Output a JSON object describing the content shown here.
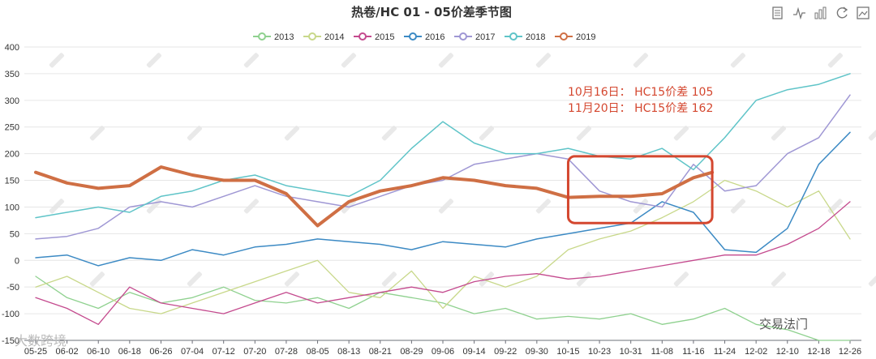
{
  "chart_data": {
    "type": "line",
    "title": "热卷/HC 01 - 05价差季节图",
    "xlabel": "",
    "ylabel": "",
    "ylim": [
      -150,
      400
    ],
    "yticks": [
      -150,
      -100,
      -50,
      0,
      50,
      100,
      150,
      200,
      250,
      300,
      350,
      400
    ],
    "x_tick_labels": [
      "05-25",
      "06-02",
      "06-10",
      "06-18",
      "06-26",
      "07-04",
      "07-12",
      "07-20",
      "07-28",
      "08-05",
      "08-13",
      "08-21",
      "08-29",
      "09-06",
      "09-14",
      "09-22",
      "09-30",
      "10-15",
      "10-23",
      "10-31",
      "11-08",
      "11-16",
      "11-24",
      "12-02",
      "12-10",
      "12-18",
      "12-26"
    ],
    "series": [
      {
        "name": "2013",
        "color": "#8fd18f",
        "width": 1.3,
        "values": [
          [
            0,
            -30
          ],
          [
            1,
            -70
          ],
          [
            2,
            -90
          ],
          [
            3,
            -60
          ],
          [
            4,
            -80
          ],
          [
            5,
            -70
          ],
          [
            6,
            -50
          ],
          [
            7,
            -75
          ],
          [
            8,
            -80
          ],
          [
            9,
            -70
          ],
          [
            10,
            -90
          ],
          [
            11,
            -60
          ],
          [
            12,
            -70
          ],
          [
            13,
            -80
          ],
          [
            14,
            -100
          ],
          [
            15,
            -90
          ],
          [
            16,
            -110
          ],
          [
            17,
            -105
          ],
          [
            18,
            -110
          ],
          [
            19,
            -100
          ],
          [
            20,
            -120
          ],
          [
            21,
            -110
          ],
          [
            22,
            -90
          ],
          [
            23,
            -120
          ],
          [
            24,
            -130
          ],
          [
            25,
            -150
          ],
          [
            26,
            -150
          ]
        ]
      },
      {
        "name": "2014",
        "color": "#c8d88a",
        "width": 1.3,
        "values": [
          [
            0,
            -50
          ],
          [
            1,
            -30
          ],
          [
            2,
            -60
          ],
          [
            3,
            -90
          ],
          [
            4,
            -100
          ],
          [
            5,
            -80
          ],
          [
            6,
            -60
          ],
          [
            7,
            -40
          ],
          [
            8,
            -20
          ],
          [
            9,
            0
          ],
          [
            10,
            -60
          ],
          [
            11,
            -70
          ],
          [
            12,
            -20
          ],
          [
            13,
            -90
          ],
          [
            14,
            -30
          ],
          [
            15,
            -50
          ],
          [
            16,
            -30
          ],
          [
            17,
            20
          ],
          [
            18,
            40
          ],
          [
            19,
            55
          ],
          [
            20,
            80
          ],
          [
            21,
            110
          ],
          [
            22,
            150
          ],
          [
            23,
            130
          ],
          [
            24,
            100
          ],
          [
            25,
            130
          ],
          [
            26,
            40
          ]
        ]
      },
      {
        "name": "2015",
        "color": "#c44a8e",
        "width": 1.3,
        "values": [
          [
            0,
            -70
          ],
          [
            1,
            -90
          ],
          [
            2,
            -120
          ],
          [
            3,
            -50
          ],
          [
            4,
            -80
          ],
          [
            5,
            -90
          ],
          [
            6,
            -100
          ],
          [
            7,
            -80
          ],
          [
            8,
            -60
          ],
          [
            9,
            -80
          ],
          [
            10,
            -70
          ],
          [
            11,
            -60
          ],
          [
            12,
            -50
          ],
          [
            13,
            -60
          ],
          [
            14,
            -40
          ],
          [
            15,
            -30
          ],
          [
            16,
            -25
          ],
          [
            17,
            -35
          ],
          [
            18,
            -30
          ],
          [
            19,
            -20
          ],
          [
            20,
            -10
          ],
          [
            21,
            0
          ],
          [
            22,
            10
          ],
          [
            23,
            10
          ],
          [
            24,
            30
          ],
          [
            25,
            60
          ],
          [
            26,
            110
          ]
        ]
      },
      {
        "name": "2016",
        "color": "#3c8ac4",
        "width": 1.5,
        "values": [
          [
            0,
            5
          ],
          [
            1,
            10
          ],
          [
            2,
            -10
          ],
          [
            3,
            5
          ],
          [
            4,
            0
          ],
          [
            5,
            20
          ],
          [
            6,
            10
          ],
          [
            7,
            25
          ],
          [
            8,
            30
          ],
          [
            9,
            40
          ],
          [
            10,
            35
          ],
          [
            11,
            30
          ],
          [
            12,
            20
          ],
          [
            13,
            35
          ],
          [
            14,
            30
          ],
          [
            15,
            25
          ],
          [
            16,
            40
          ],
          [
            17,
            50
          ],
          [
            18,
            60
          ],
          [
            19,
            70
          ],
          [
            20,
            110
          ],
          [
            21,
            90
          ],
          [
            22,
            20
          ],
          [
            23,
            15
          ],
          [
            24,
            60
          ],
          [
            25,
            180
          ],
          [
            26,
            240
          ]
        ]
      },
      {
        "name": "2017",
        "color": "#9f97d4",
        "width": 1.5,
        "values": [
          [
            0,
            40
          ],
          [
            1,
            45
          ],
          [
            2,
            60
          ],
          [
            3,
            100
          ],
          [
            4,
            110
          ],
          [
            5,
            100
          ],
          [
            6,
            120
          ],
          [
            7,
            140
          ],
          [
            8,
            120
          ],
          [
            9,
            110
          ],
          [
            10,
            100
          ],
          [
            11,
            120
          ],
          [
            12,
            140
          ],
          [
            13,
            150
          ],
          [
            14,
            180
          ],
          [
            15,
            190
          ],
          [
            16,
            200
          ],
          [
            17,
            190
          ],
          [
            18,
            130
          ],
          [
            19,
            110
          ],
          [
            20,
            100
          ],
          [
            21,
            180
          ],
          [
            22,
            130
          ],
          [
            23,
            140
          ],
          [
            24,
            200
          ],
          [
            25,
            230
          ],
          [
            26,
            310
          ]
        ]
      },
      {
        "name": "2018",
        "color": "#5fc4c8",
        "width": 1.5,
        "values": [
          [
            0,
            80
          ],
          [
            1,
            90
          ],
          [
            2,
            100
          ],
          [
            3,
            90
          ],
          [
            4,
            120
          ],
          [
            5,
            130
          ],
          [
            6,
            150
          ],
          [
            7,
            160
          ],
          [
            8,
            140
          ],
          [
            9,
            130
          ],
          [
            10,
            120
          ],
          [
            11,
            150
          ],
          [
            12,
            210
          ],
          [
            13,
            260
          ],
          [
            14,
            220
          ],
          [
            15,
            200
          ],
          [
            16,
            200
          ],
          [
            17,
            210
          ],
          [
            18,
            195
          ],
          [
            19,
            190
          ],
          [
            20,
            210
          ],
          [
            21,
            170
          ],
          [
            22,
            230
          ],
          [
            23,
            300
          ],
          [
            24,
            320
          ],
          [
            25,
            330
          ],
          [
            26,
            350
          ]
        ]
      },
      {
        "name": "2019",
        "color": "#cf6f44",
        "width": 4,
        "values": [
          [
            0,
            165
          ],
          [
            1,
            145
          ],
          [
            2,
            135
          ],
          [
            3,
            140
          ],
          [
            4,
            175
          ],
          [
            5,
            160
          ],
          [
            6,
            150
          ],
          [
            7,
            150
          ],
          [
            8,
            125
          ],
          [
            9,
            65
          ],
          [
            10,
            110
          ],
          [
            11,
            130
          ],
          [
            12,
            140
          ],
          [
            13,
            155
          ],
          [
            14,
            150
          ],
          [
            15,
            140
          ],
          [
            16,
            135
          ],
          [
            17,
            118
          ],
          [
            18,
            120
          ],
          [
            19,
            120
          ],
          [
            20,
            125
          ],
          [
            21,
            155
          ],
          [
            21.6,
            165
          ]
        ]
      }
    ],
    "legend": {
      "position": "top-center",
      "entries": [
        "2013",
        "2014",
        "2015",
        "2016",
        "2017",
        "2018",
        "2019"
      ]
    },
    "annotation": {
      "lines": [
        "10月16日： HC15价差 105",
        "11月20日： HC15价差 162"
      ],
      "color": "#d4472f",
      "highlight_x_range": [
        17,
        21.6
      ],
      "highlight_y_range": [
        70,
        195
      ]
    },
    "grid": true
  },
  "toolbar": {
    "icons": [
      "data-view-icon",
      "line-chart-icon",
      "bar-chart-icon",
      "refresh-icon",
      "save-image-icon"
    ]
  },
  "watermarks": {
    "bottom_left": "大数跨境",
    "bottom_right": "交易法门"
  }
}
